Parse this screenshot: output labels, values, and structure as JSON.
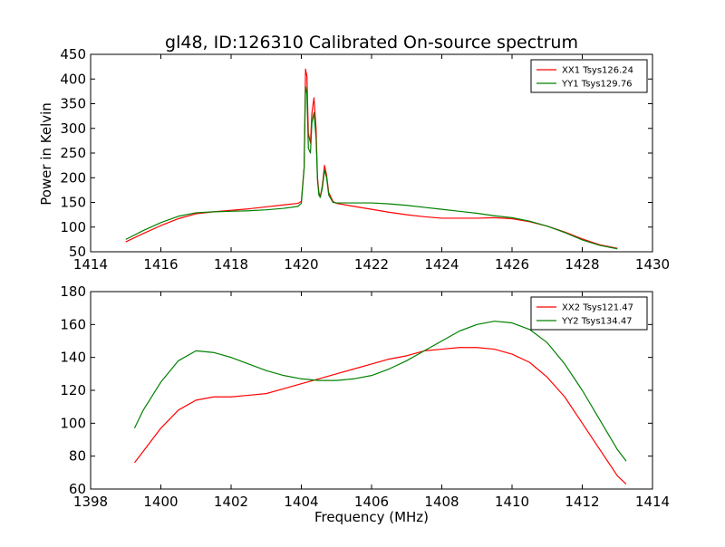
{
  "chart_data": [
    {
      "type": "line",
      "title": "gl48, ID:126310 Calibrated On-source spectrum",
      "xlabel": "",
      "ylabel": "Power in Kelvin",
      "xlim": [
        1414,
        1430
      ],
      "ylim": [
        50,
        450
      ],
      "xticks": [
        1414,
        1416,
        1418,
        1420,
        1422,
        1424,
        1426,
        1428,
        1430
      ],
      "yticks": [
        50,
        100,
        150,
        200,
        250,
        300,
        350,
        400,
        450
      ],
      "legend_position": "top-right",
      "series": [
        {
          "name": "XX1 Tsys126.24",
          "color": "#ff0000",
          "x": [
            1415.0,
            1415.5,
            1416.0,
            1416.5,
            1417.0,
            1417.5,
            1418.0,
            1418.5,
            1419.0,
            1419.5,
            1419.9,
            1420.0,
            1420.08,
            1420.12,
            1420.16,
            1420.2,
            1420.26,
            1420.3,
            1420.36,
            1420.42,
            1420.46,
            1420.5,
            1420.54,
            1420.6,
            1420.66,
            1420.72,
            1420.78,
            1420.9,
            1421.0,
            1421.5,
            1422.0,
            1422.5,
            1423.0,
            1423.5,
            1424.0,
            1424.5,
            1425.0,
            1425.5,
            1426.0,
            1426.5,
            1427.0,
            1427.5,
            1428.0,
            1428.5,
            1429.0
          ],
          "y": [
            70,
            87,
            103,
            117,
            127,
            131,
            134,
            137,
            141,
            145,
            148,
            152,
            220,
            420,
            405,
            290,
            270,
            330,
            362,
            300,
            200,
            170,
            162,
            185,
            225,
            205,
            170,
            152,
            148,
            142,
            136,
            130,
            125,
            121,
            118,
            118,
            118,
            119,
            117,
            111,
            102,
            90,
            76,
            64,
            57
          ]
        },
        {
          "name": "YY1 Tsys129.76",
          "color": "#008000",
          "x": [
            1415.0,
            1415.5,
            1416.0,
            1416.5,
            1417.0,
            1417.5,
            1418.0,
            1418.5,
            1419.0,
            1419.5,
            1419.9,
            1420.0,
            1420.08,
            1420.12,
            1420.16,
            1420.2,
            1420.26,
            1420.3,
            1420.36,
            1420.42,
            1420.46,
            1420.5,
            1420.54,
            1420.6,
            1420.66,
            1420.72,
            1420.78,
            1420.9,
            1421.0,
            1421.5,
            1422.0,
            1422.5,
            1423.0,
            1423.5,
            1424.0,
            1424.5,
            1425.0,
            1425.5,
            1426.0,
            1426.5,
            1427.0,
            1427.5,
            1428.0,
            1428.5,
            1429.0
          ],
          "y": [
            75,
            93,
            109,
            122,
            129,
            131,
            132,
            133,
            135,
            138,
            142,
            148,
            220,
            385,
            370,
            260,
            250,
            310,
            332,
            280,
            195,
            165,
            160,
            180,
            215,
            200,
            165,
            150,
            149,
            149,
            149,
            147,
            144,
            140,
            136,
            132,
            128,
            123,
            119,
            112,
            102,
            89,
            74,
            63,
            56
          ]
        }
      ]
    },
    {
      "type": "line",
      "title": "",
      "xlabel": "Frequency (MHz)",
      "ylabel": "",
      "xlim": [
        1398,
        1414
      ],
      "ylim": [
        60,
        180
      ],
      "xticks": [
        1398,
        1400,
        1402,
        1404,
        1406,
        1408,
        1410,
        1412,
        1414
      ],
      "yticks": [
        60,
        80,
        100,
        120,
        140,
        160,
        180
      ],
      "legend_position": "top-right",
      "series": [
        {
          "name": "XX2 Tsys121.47",
          "color": "#ff0000",
          "x": [
            1399.25,
            1399.5,
            1400.0,
            1400.5,
            1401.0,
            1401.5,
            1402.0,
            1402.5,
            1403.0,
            1403.5,
            1404.0,
            1404.5,
            1405.0,
            1405.5,
            1406.0,
            1406.5,
            1407.0,
            1407.5,
            1408.0,
            1408.5,
            1409.0,
            1409.5,
            1410.0,
            1410.5,
            1411.0,
            1411.5,
            1412.0,
            1412.5,
            1413.0,
            1413.25
          ],
          "y": [
            76,
            83,
            97,
            108,
            114,
            116,
            116,
            117,
            118,
            121,
            124,
            127,
            130,
            133,
            136,
            139,
            141,
            144,
            145,
            146,
            146,
            145,
            142,
            137,
            128,
            116,
            100,
            84,
            68,
            63
          ]
        },
        {
          "name": "YY2 Tsys134.47",
          "color": "#008000",
          "x": [
            1399.25,
            1399.5,
            1400.0,
            1400.5,
            1401.0,
            1401.5,
            1402.0,
            1402.5,
            1403.0,
            1403.5,
            1404.0,
            1404.5,
            1405.0,
            1405.5,
            1406.0,
            1406.5,
            1407.0,
            1407.5,
            1408.0,
            1408.5,
            1409.0,
            1409.5,
            1410.0,
            1410.5,
            1411.0,
            1411.5,
            1412.0,
            1412.5,
            1413.0,
            1413.25
          ],
          "y": [
            97,
            108,
            125,
            138,
            144,
            143,
            140,
            136,
            132,
            129,
            127,
            126,
            126,
            127,
            129,
            133,
            138,
            144,
            150,
            156,
            160,
            162,
            161,
            157,
            149,
            136,
            120,
            102,
            84,
            77
          ]
        }
      ]
    }
  ]
}
